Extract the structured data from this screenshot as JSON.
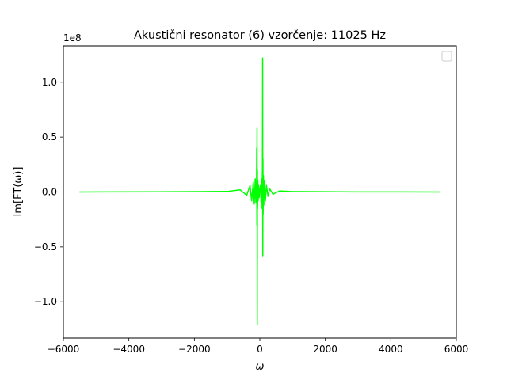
{
  "chart_data": {
    "type": "line",
    "title": "Akustični resonator (6) vzorčenje: 11025 Hz",
    "xlabel": "ω",
    "ylabel": "Im[FT(ω)]",
    "y_offset_text": "1e8",
    "x_ticks": [
      -6000,
      -4000,
      -2000,
      0,
      2000,
      4000,
      6000
    ],
    "x_tick_labels": [
      "−6000",
      "−4000",
      "−2000",
      "0",
      "2000",
      "4000",
      "6000"
    ],
    "y_ticks": [
      -1.0,
      -0.5,
      0.0,
      0.5,
      1.0
    ],
    "y_tick_labels": [
      "−1.0",
      "−0.5",
      "0.0",
      "0.5",
      "1.0"
    ],
    "xlim": [
      -6000,
      6000
    ],
    "ylim": [
      -1.33,
      1.33
    ],
    "grid": false,
    "legend": {
      "placement": "top-right",
      "entries": []
    },
    "series": [
      {
        "color": "#00ff00",
        "x": [
          -5512,
          -3000,
          -1000,
          -600,
          -400,
          -300,
          -250,
          -200,
          -170,
          -140,
          -120,
          -100,
          -95,
          -90,
          -85,
          -80,
          -75,
          -70,
          -60,
          -50,
          -40,
          -20,
          0,
          20,
          40,
          60,
          70,
          80,
          85,
          90,
          95,
          100,
          110,
          120,
          140,
          170,
          200,
          250,
          300,
          400,
          600,
          1000,
          3000,
          5512
        ],
        "y": [
          0.0,
          0.002,
          0.005,
          0.02,
          -0.03,
          0.06,
          -0.08,
          0.09,
          -0.11,
          0.12,
          -0.1,
          0.08,
          0.4,
          -0.3,
          0.58,
          -1.21,
          0.2,
          -0.15,
          0.1,
          -0.08,
          0.06,
          -0.05,
          0.03,
          0.06,
          -0.1,
          0.12,
          -0.15,
          0.25,
          1.22,
          -0.58,
          0.3,
          -0.2,
          0.15,
          -0.12,
          0.1,
          -0.08,
          0.06,
          -0.04,
          0.03,
          -0.02,
          0.01,
          0.004,
          0.001,
          0.0
        ]
      }
    ]
  }
}
